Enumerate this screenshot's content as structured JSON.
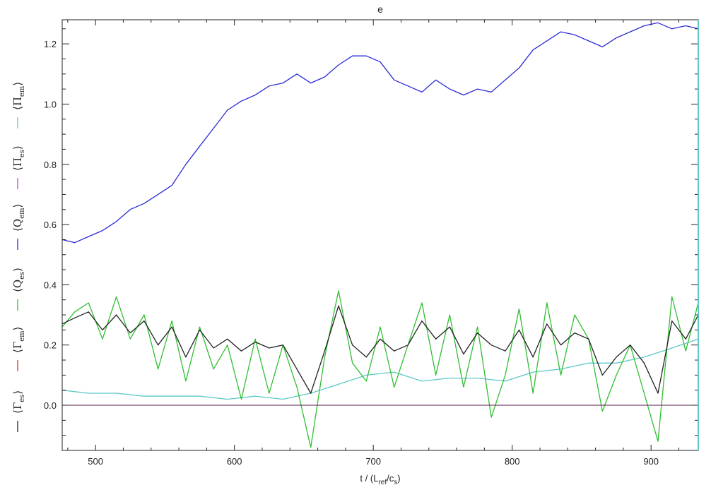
{
  "chart_data": {
    "type": "line",
    "title": "e",
    "xlabel": "t / (L_ref/c_s)",
    "xlabel_parts": {
      "prefix": "t / (L",
      "sub1": "ref",
      "mid": "/c",
      "sub2": "s",
      "suffix": ")"
    },
    "ylabel": "",
    "xlim": [
      476,
      934
    ],
    "ylim": [
      -0.15,
      1.28
    ],
    "x_ticks": [
      500,
      600,
      700,
      800,
      900
    ],
    "x_tick_labels": [
      "500",
      "600",
      "700",
      "800",
      "900"
    ],
    "y_ticks": [
      0.0,
      0.2,
      0.4,
      0.6,
      0.8,
      1.0,
      1.2
    ],
    "y_tick_labels": [
      "0.0",
      "0.2",
      "0.4",
      "0.6",
      "0.8",
      "1.0",
      "1.2"
    ],
    "grid": false,
    "legend_position": "left, rotated vertically",
    "series": [
      {
        "name": "⟨Γes⟩",
        "label_main": "Γ",
        "label_sub": "es",
        "color": "#222222",
        "x": [
          476,
          485,
          495,
          505,
          515,
          525,
          535,
          545,
          555,
          565,
          575,
          585,
          595,
          605,
          615,
          625,
          635,
          645,
          655,
          665,
          675,
          685,
          695,
          705,
          715,
          725,
          735,
          745,
          755,
          765,
          775,
          785,
          795,
          805,
          815,
          825,
          835,
          845,
          855,
          865,
          875,
          885,
          895,
          905,
          915,
          925,
          934
        ],
        "y": [
          0.27,
          0.29,
          0.31,
          0.25,
          0.3,
          0.24,
          0.28,
          0.2,
          0.26,
          0.16,
          0.25,
          0.19,
          0.22,
          0.18,
          0.21,
          0.19,
          0.2,
          0.12,
          0.04,
          0.18,
          0.33,
          0.2,
          0.16,
          0.22,
          0.18,
          0.2,
          0.28,
          0.22,
          0.26,
          0.17,
          0.24,
          0.2,
          0.18,
          0.25,
          0.16,
          0.27,
          0.2,
          0.24,
          0.22,
          0.1,
          0.16,
          0.2,
          0.14,
          0.04,
          0.28,
          0.22,
          0.3
        ]
      },
      {
        "name": "⟨Γem⟩",
        "label_main": "Γ",
        "label_sub": "em",
        "color": "#e23030",
        "x": [
          476,
          934
        ],
        "y": [
          0.0,
          0.0
        ]
      },
      {
        "name": "⟨Qes⟩",
        "label_main": "Q",
        "label_sub": "es",
        "color": "#2fbf2f",
        "x": [
          476,
          485,
          495,
          505,
          515,
          525,
          535,
          545,
          555,
          565,
          575,
          585,
          595,
          605,
          615,
          625,
          635,
          645,
          655,
          665,
          675,
          685,
          695,
          705,
          715,
          725,
          735,
          745,
          755,
          765,
          775,
          785,
          795,
          805,
          815,
          825,
          835,
          845,
          855,
          865,
          875,
          885,
          895,
          905,
          915,
          925,
          934
        ],
        "y": [
          0.26,
          0.31,
          0.34,
          0.22,
          0.36,
          0.22,
          0.3,
          0.12,
          0.28,
          0.08,
          0.26,
          0.12,
          0.2,
          0.02,
          0.22,
          0.04,
          0.2,
          0.06,
          -0.14,
          0.16,
          0.38,
          0.14,
          0.08,
          0.26,
          0.06,
          0.2,
          0.34,
          0.1,
          0.3,
          0.06,
          0.26,
          -0.04,
          0.1,
          0.32,
          0.04,
          0.34,
          0.1,
          0.3,
          0.22,
          -0.02,
          0.1,
          0.2,
          0.04,
          -0.12,
          0.36,
          0.18,
          0.34
        ]
      },
      {
        "name": "⟨Qem⟩",
        "label_main": "Q",
        "label_sub": "em",
        "color": "#2b2bd6",
        "x": [
          476,
          485,
          495,
          505,
          515,
          525,
          535,
          545,
          555,
          565,
          575,
          585,
          595,
          605,
          615,
          625,
          635,
          645,
          655,
          665,
          675,
          685,
          695,
          705,
          715,
          725,
          735,
          745,
          755,
          765,
          775,
          785,
          795,
          805,
          815,
          825,
          835,
          845,
          855,
          865,
          875,
          885,
          895,
          905,
          915,
          925,
          934
        ],
        "y": [
          0.55,
          0.54,
          0.56,
          0.58,
          0.61,
          0.65,
          0.67,
          0.7,
          0.73,
          0.8,
          0.86,
          0.92,
          0.98,
          1.01,
          1.03,
          1.06,
          1.07,
          1.1,
          1.07,
          1.09,
          1.13,
          1.16,
          1.16,
          1.14,
          1.08,
          1.06,
          1.04,
          1.08,
          1.05,
          1.03,
          1.05,
          1.04,
          1.08,
          1.12,
          1.18,
          1.21,
          1.24,
          1.23,
          1.21,
          1.19,
          1.22,
          1.24,
          1.26,
          1.27,
          1.25,
          1.26,
          1.25
        ]
      },
      {
        "name": "⟨Πes⟩",
        "label_main": "Π",
        "label_sub": "es",
        "color": "#d040d0",
        "x": [
          476,
          934
        ],
        "y": [
          0.0,
          0.0
        ]
      },
      {
        "name": "⟨Πem⟩",
        "label_main": "Π",
        "label_sub": "em",
        "color": "#5cc8c8",
        "x": [
          476,
          495,
          515,
          535,
          555,
          575,
          595,
          615,
          635,
          655,
          675,
          695,
          715,
          735,
          755,
          775,
          795,
          815,
          835,
          855,
          875,
          895,
          915,
          934
        ],
        "y": [
          0.05,
          0.04,
          0.04,
          0.03,
          0.03,
          0.03,
          0.02,
          0.03,
          0.02,
          0.04,
          0.07,
          0.1,
          0.11,
          0.08,
          0.09,
          0.09,
          0.08,
          0.11,
          0.12,
          0.14,
          0.14,
          0.16,
          0.19,
          0.22
        ]
      }
    ]
  }
}
